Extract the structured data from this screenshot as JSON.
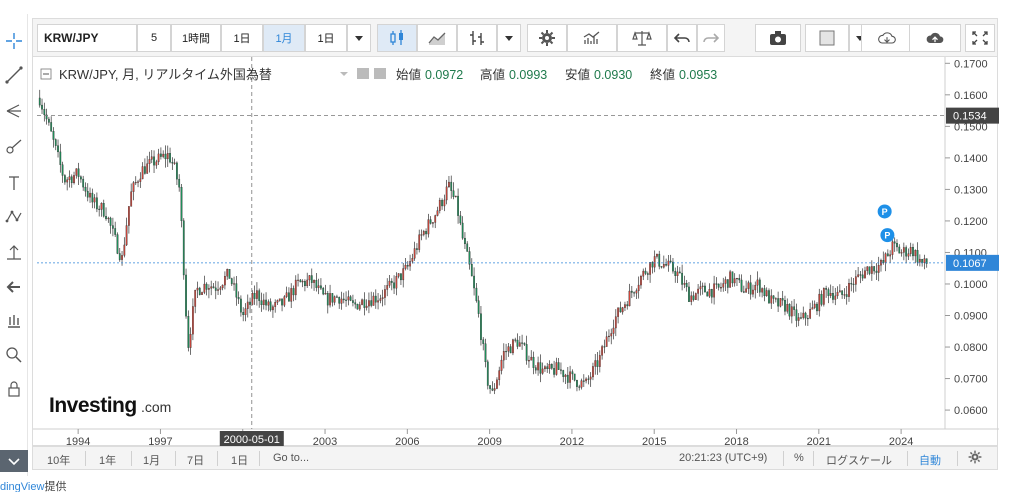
{
  "toolbar": {
    "symbol": "KRW/JPY",
    "intervals": [
      "5",
      "1時間",
      "1日",
      "1月",
      "1日"
    ],
    "active_interval_index": 3
  },
  "legend": {
    "title": "KRW/JPY, 月, リアルタイム外国為替",
    "open_label": "始値",
    "open_value": "0.0972",
    "high_label": "高値",
    "high_value": "0.0993",
    "low_label": "安値",
    "low_value": "0.0930",
    "close_label": "終値",
    "close_value": "0.0953"
  },
  "branding": {
    "logo_bold": "Investing",
    "logo_suffix": ".com"
  },
  "crosshair": {
    "date_label": "2000-05-01",
    "price_label": "0.1534",
    "date_value": 2000.33,
    "price_value": 0.1534
  },
  "last_price_label": "0.1067",
  "markers": [
    {
      "label": "P",
      "x": 2023.4,
      "y": 0.123
    },
    {
      "label": "P",
      "x": 2023.5,
      "y": 0.1155
    }
  ],
  "bottom_bar": {
    "ranges": [
      "10年",
      "1年",
      "1月",
      "7日",
      "1日"
    ],
    "goto": "Go to...",
    "time": "20:21:23 (UTC+9)",
    "percent": "%",
    "log_scale": "ログスケール",
    "auto": "自動"
  },
  "credit": {
    "link": "dingView",
    "tail": "提供"
  },
  "colors": {
    "up": "#d0463b",
    "down": "#1f8e5a",
    "accent": "#2f86d8",
    "axis_text": "#444444",
    "grid": "#eeeeee"
  },
  "chart_data": {
    "type": "candlestick",
    "title": "KRW/JPY, 月, リアルタイム外国為替",
    "xlim": [
      1992.5,
      2025.6
    ],
    "ylim": [
      0.054,
      0.172
    ],
    "x_ticks": [
      1994,
      1997,
      2000,
      2003,
      2006,
      2009,
      2012,
      2015,
      2018,
      2021,
      2024
    ],
    "y_ticks": [
      0.17,
      0.16,
      0.15,
      0.14,
      0.13,
      0.12,
      0.11,
      0.1,
      0.09,
      0.08,
      0.07,
      0.06
    ],
    "y_tick_labels": [
      "0.1700",
      "0.1600",
      "0.1500",
      "0.1400",
      "0.1300",
      "0.1200",
      "0.1100",
      "0.1000",
      "0.0900",
      "0.0800",
      "0.0700",
      "0.0600"
    ],
    "close_series": {
      "x": [
        1992.6,
        1993.0,
        1993.5,
        1994.0,
        1994.5,
        1995.0,
        1995.3,
        1995.6,
        1995.9,
        1996.3,
        1996.8,
        1997.3,
        1997.5,
        1997.7,
        1997.85,
        1998.0,
        1998.3,
        1998.7,
        1999.0,
        1999.5,
        2000.0,
        2000.5,
        2001.0,
        2001.5,
        2002.0,
        2002.5,
        2003.0,
        2003.5,
        2004.0,
        2004.5,
        2005.0,
        2005.5,
        2006.0,
        2006.5,
        2007.0,
        2007.3,
        2007.5,
        2007.8,
        2008.0,
        2008.3,
        2008.6,
        2008.9,
        2009.1,
        2009.5,
        2010.0,
        2010.5,
        2011.0,
        2011.5,
        2012.0,
        2012.5,
        2013.0,
        2013.5,
        2014.0,
        2014.5,
        2015.0,
        2015.4,
        2015.8,
        2016.3,
        2016.8,
        2017.3,
        2017.8,
        2018.3,
        2018.8,
        2019.3,
        2019.8,
        2020.3,
        2020.8,
        2021.3,
        2021.8,
        2022.3,
        2022.8,
        2023.3,
        2023.7,
        2024.0,
        2024.4,
        2024.8,
        2025.0
      ],
      "y": [
        0.159,
        0.148,
        0.133,
        0.135,
        0.126,
        0.123,
        0.115,
        0.108,
        0.128,
        0.136,
        0.139,
        0.141,
        0.137,
        0.13,
        0.105,
        0.08,
        0.098,
        0.1,
        0.099,
        0.103,
        0.09,
        0.097,
        0.092,
        0.094,
        0.1,
        0.101,
        0.095,
        0.096,
        0.093,
        0.095,
        0.096,
        0.1,
        0.105,
        0.115,
        0.122,
        0.127,
        0.131,
        0.125,
        0.115,
        0.104,
        0.09,
        0.07,
        0.065,
        0.078,
        0.082,
        0.076,
        0.072,
        0.073,
        0.07,
        0.068,
        0.076,
        0.088,
        0.095,
        0.102,
        0.108,
        0.106,
        0.104,
        0.096,
        0.098,
        0.098,
        0.102,
        0.098,
        0.1,
        0.094,
        0.093,
        0.088,
        0.092,
        0.098,
        0.096,
        0.101,
        0.105,
        0.106,
        0.112,
        0.11,
        0.111,
        0.106,
        0.1067
      ]
    }
  }
}
